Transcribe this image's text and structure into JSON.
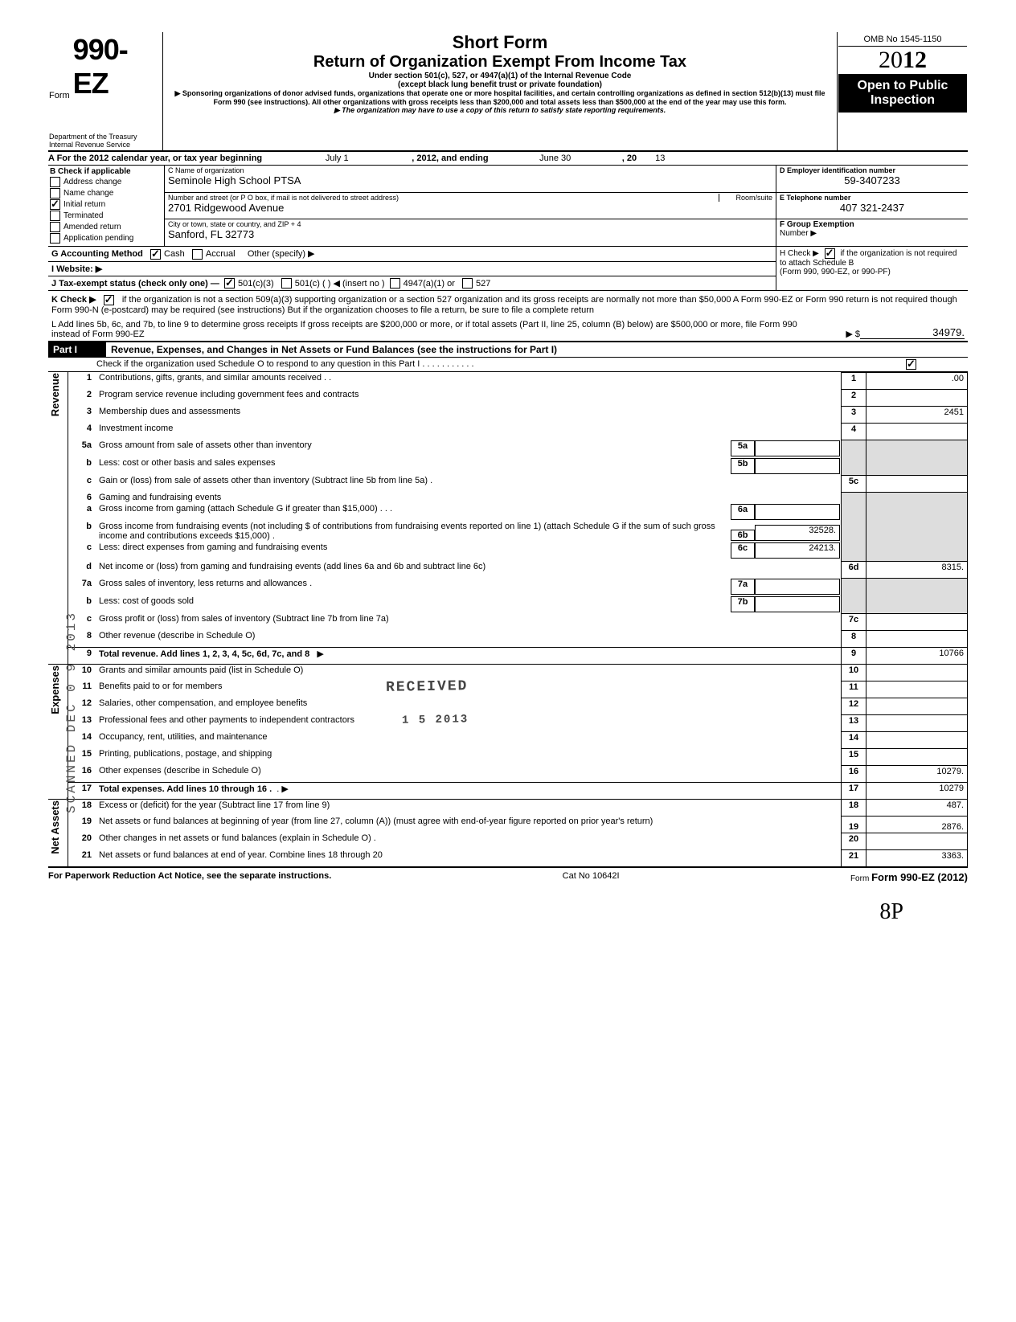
{
  "header": {
    "form_label": "Form",
    "form_number": "990-EZ",
    "omb": "OMB No 1545-1150",
    "year": "2012",
    "year_styled_prefix": "20",
    "year_styled_suffix": "12",
    "short_form": "Short Form",
    "main_title": "Return of Organization Exempt From Income Tax",
    "sub1": "Under section 501(c), 527, or 4947(a)(1) of the Internal Revenue Code",
    "sub2": "(except black lung benefit trust or private foundation)",
    "sub3": "▶ Sponsoring organizations of donor advised funds, organizations that operate one or more hospital facilities, and certain controlling organizations as defined in section 512(b)(13) must file Form 990 (see instructions). All other organizations with gross receipts less than $200,000 and total assets less than $500,000 at the end of the year may use this form.",
    "sub4": "▶ The organization may have to use a copy of this return to satisfy state reporting requirements.",
    "open_public": "Open to Public Inspection",
    "dept1": "Department of the Treasury",
    "dept2": "Internal Revenue Service"
  },
  "line_a": {
    "text": "A For the 2012 calendar year, or tax year beginning",
    "begin": "July 1",
    "mid": ", 2012, and ending",
    "end": "June 30",
    "tail": ", 20",
    "tail_val": "13"
  },
  "section_b": {
    "title": "B Check if applicable",
    "items": [
      {
        "label": "Address change",
        "checked": false
      },
      {
        "label": "Name change",
        "checked": false
      },
      {
        "label": "Initial return",
        "checked": true
      },
      {
        "label": "Terminated",
        "checked": false
      },
      {
        "label": "Amended return",
        "checked": false
      },
      {
        "label": "Application pending",
        "checked": false
      }
    ]
  },
  "section_c": {
    "name_label": "C Name of organization",
    "name": "Seminole High School PTSA",
    "addr_label": "Number and street (or P O box, if mail is not delivered to street address)",
    "room_label": "Room/suite",
    "addr": "2701 Ridgewood Avenue",
    "city_label": "City or town, state or country, and ZIP + 4",
    "city": "Sanford, FL  32773"
  },
  "section_d": {
    "label": "D Employer identification number",
    "value": "59-3407233"
  },
  "section_e": {
    "label": "E Telephone number",
    "value": "407 321-2437"
  },
  "section_f": {
    "label": "F Group Exemption",
    "label2": "Number ▶"
  },
  "section_g": {
    "label": "G Accounting Method",
    "cash": "Cash",
    "accrual": "Accrual",
    "other": "Other (specify) ▶"
  },
  "section_h": {
    "text1": "H Check ▶",
    "text2": "if the organization is not required to attach Schedule B",
    "text3": "(Form 990, 990-EZ, or 990-PF)"
  },
  "section_i": {
    "label": "I   Website: ▶"
  },
  "section_j": {
    "label": "J  Tax-exempt status (check only one) —",
    "opt1": "501(c)(3)",
    "opt2": "501(c) (          ) ◀ (insert no )",
    "opt3": "4947(a)(1) or",
    "opt4": "527"
  },
  "section_k": {
    "label": "K Check ▶",
    "text": "if the organization is not a section 509(a)(3) supporting organization or a section 527 organization and its gross receipts are normally not more than $50,000  A Form 990-EZ or Form 990 return is not required though Form 990-N (e-postcard) may be required (see instructions)  But if the organization chooses to file a return, be sure to file a complete return"
  },
  "section_l": {
    "text": "L Add lines 5b, 6c, and 7b, to line 9 to determine gross receipts  If gross receipts are $200,000 or more, or if total assets (Part II, line 25, column (B) below) are $500,000 or more, file Form 990 instead of Form 990-EZ",
    "arrow": "▶  $",
    "value": "34979."
  },
  "part1": {
    "label": "Part I",
    "title": "Revenue, Expenses, and Changes in Net Assets or Fund Balances (see the instructions for Part I)",
    "check_line": "Check if the organization used Schedule O to respond to any question in this Part I  .   .   .   .   .   .   .   .   .   .   ."
  },
  "side_labels": {
    "revenue": "Revenue",
    "expenses": "Expenses",
    "net_assets": "Net Assets"
  },
  "lines": {
    "l1": {
      "num": "1",
      "desc": "Contributions, gifts, grants, and similar amounts received .   .",
      "box": "1",
      "val": ".00"
    },
    "l2": {
      "num": "2",
      "desc": "Program service revenue including government fees and contracts",
      "box": "2",
      "val": ""
    },
    "l3": {
      "num": "3",
      "desc": "Membership dues and assessments",
      "box": "3",
      "val": "2451"
    },
    "l4": {
      "num": "4",
      "desc": "Investment income",
      "box": "4",
      "val": ""
    },
    "l5a": {
      "num": "5a",
      "desc": "Gross amount from sale of assets other than inventory",
      "box": "5a"
    },
    "l5b": {
      "num": "b",
      "desc": "Less: cost or other basis and sales expenses",
      "box": "5b"
    },
    "l5c": {
      "num": "c",
      "desc": "Gain or (loss) from sale of assets other than inventory (Subtract line 5b from line 5a)  .",
      "box": "5c",
      "val": ""
    },
    "l6": {
      "num": "6",
      "desc": "Gaming and fundraising events"
    },
    "l6a": {
      "num": "a",
      "desc": "Gross income from gaming (attach Schedule G if greater than $15,000) .   .   .",
      "box": "6a"
    },
    "l6b": {
      "num": "b",
      "desc": "Gross income from fundraising events (not including  $                       of contributions from fundraising events reported on line 1) (attach Schedule G if the sum of such gross income and contributions exceeds $15,000) .",
      "box": "6b",
      "val": "32528."
    },
    "l6c": {
      "num": "c",
      "desc": "Less: direct expenses from gaming and fundraising events",
      "box": "6c",
      "val": "24213."
    },
    "l6d": {
      "num": "d",
      "desc": "Net income or (loss) from gaming and fundraising events (add lines 6a and 6b and subtract line 6c)",
      "box": "6d",
      "val": "8315."
    },
    "l7a": {
      "num": "7a",
      "desc": "Gross sales of inventory, less returns and allowances   .",
      "box": "7a"
    },
    "l7b": {
      "num": "b",
      "desc": "Less: cost of goods sold",
      "box": "7b"
    },
    "l7c": {
      "num": "c",
      "desc": "Gross profit or (loss) from sales of inventory (Subtract line 7b from line 7a)",
      "box": "7c",
      "val": ""
    },
    "l8": {
      "num": "8",
      "desc": "Other revenue (describe in Schedule O)",
      "box": "8",
      "val": ""
    },
    "l9": {
      "num": "9",
      "desc": "Total revenue. Add lines 1, 2, 3, 4, 5c, 6d, 7c, and 8",
      "box": "9",
      "val": "10766",
      "bold": true
    },
    "l10": {
      "num": "10",
      "desc": "Grants and similar amounts paid (list in Schedule O)",
      "box": "10",
      "val": ""
    },
    "l11": {
      "num": "11",
      "desc": "Benefits paid to or for members",
      "box": "11",
      "val": ""
    },
    "l12": {
      "num": "12",
      "desc": "Salaries, other compensation, and employee benefits",
      "box": "12",
      "val": ""
    },
    "l13": {
      "num": "13",
      "desc": "Professional fees and other payments to independent contractors",
      "box": "13",
      "val": ""
    },
    "l14": {
      "num": "14",
      "desc": "Occupancy, rent, utilities, and maintenance",
      "box": "14",
      "val": ""
    },
    "l15": {
      "num": "15",
      "desc": "Printing, publications, postage, and shipping",
      "box": "15",
      "val": ""
    },
    "l16": {
      "num": "16",
      "desc": "Other expenses (describe in Schedule O)",
      "box": "16",
      "val": "10279."
    },
    "l17": {
      "num": "17",
      "desc": "Total expenses. Add lines 10 through 16   .",
      "box": "17",
      "val": "10279",
      "bold": true
    },
    "l18": {
      "num": "18",
      "desc": "Excess or (deficit) for the year (Subtract line 17 from line 9)",
      "box": "18",
      "val": "487."
    },
    "l19": {
      "num": "19",
      "desc": "Net assets or fund balances at beginning of year (from line 27, column (A)) (must agree with end-of-year figure reported on prior year's return)",
      "box": "19",
      "val": "2876."
    },
    "l20": {
      "num": "20",
      "desc": "Other changes in net assets or fund balances (explain in Schedule O) .",
      "box": "20",
      "val": ""
    },
    "l21": {
      "num": "21",
      "desc": "Net assets or fund balances at end of year. Combine lines 18 through 20",
      "box": "21",
      "val": "3363."
    }
  },
  "stamps": {
    "received": "RECEIVED",
    "date": "1  5  2013",
    "side": "SCANNED DEC 0 9 2013"
  },
  "footer": {
    "left": "For Paperwork Reduction Act Notice, see the separate instructions.",
    "mid": "Cat No 10642I",
    "right": "Form 990-EZ (2012)"
  },
  "initials": "8P"
}
